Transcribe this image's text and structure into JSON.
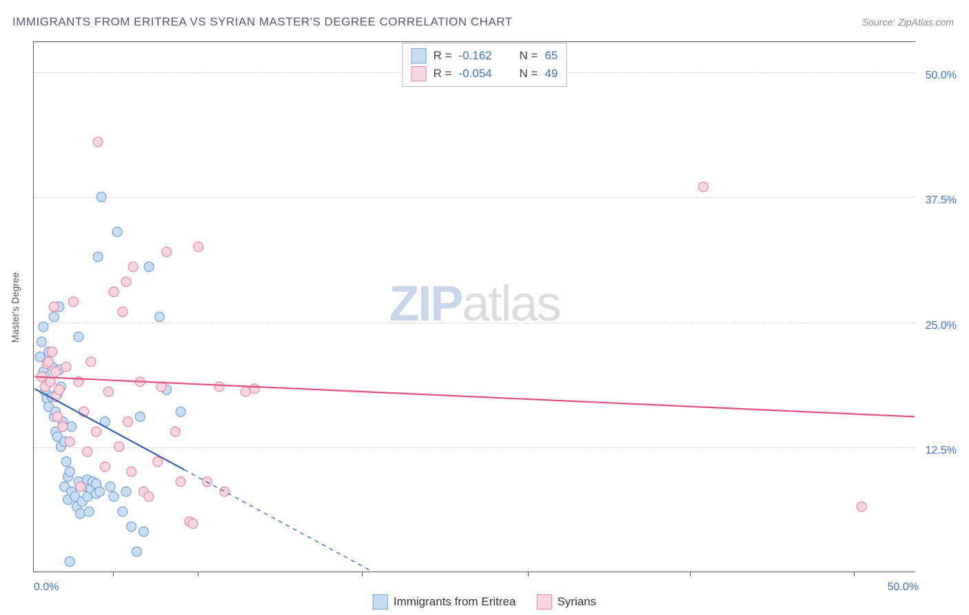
{
  "title": "IMMIGRANTS FROM ERITREA VS SYRIAN MASTER'S DEGREE CORRELATION CHART",
  "source_prefix": "Source: ",
  "source_name": "ZipAtlas.com",
  "watermark_zip": "ZIP",
  "watermark_atlas": "atlas",
  "ylabel": "Master's Degree",
  "chart": {
    "type": "scatter",
    "background_color": "#ffffff",
    "grid_color": "#d5d5d5",
    "axis_color": "#555555",
    "xlim": [
      0,
      50
    ],
    "ylim": [
      0,
      53
    ],
    "yticks": [
      12.5,
      25.0,
      37.5,
      50.0
    ],
    "ytick_labels": [
      "12.5%",
      "25.0%",
      "37.5%",
      "50.0%"
    ],
    "xticks_major": [
      0,
      50
    ],
    "xtick_labels": [
      "0.0%",
      "50.0%"
    ],
    "xticks_minor": [
      4.5,
      9.3,
      18.6,
      28.0,
      37.2,
      46.5
    ],
    "marker_radius": 7,
    "marker_stroke_width": 1.2,
    "trendline_width": 2.2,
    "series_a": {
      "label": "Immigrants from Eritrea",
      "fill": "#c9ddf4",
      "stroke": "#6fa0dc",
      "line_color": "#2e5fbf",
      "r": "-0.162",
      "n": "65",
      "trend": {
        "x1": 0,
        "y1": 18.3,
        "x2": 8.5,
        "y2": 10.2
      },
      "trend_ext": {
        "x1": 8.5,
        "y1": 10.2,
        "x2": 19.2,
        "y2": 0
      },
      "points": [
        [
          0.3,
          21.5
        ],
        [
          0.4,
          23.0
        ],
        [
          0.5,
          24.5
        ],
        [
          0.5,
          20.0
        ],
        [
          0.6,
          18.0
        ],
        [
          0.6,
          19.5
        ],
        [
          0.7,
          17.3
        ],
        [
          0.7,
          18.8
        ],
        [
          0.8,
          16.5
        ],
        [
          0.8,
          22.0
        ],
        [
          0.9,
          19.0
        ],
        [
          1.0,
          17.5
        ],
        [
          1.0,
          20.5
        ],
        [
          1.1,
          15.5
        ],
        [
          1.1,
          25.5
        ],
        [
          1.2,
          14.0
        ],
        [
          1.2,
          16.0
        ],
        [
          1.3,
          13.5
        ],
        [
          1.3,
          17.8
        ],
        [
          1.4,
          20.2
        ],
        [
          1.4,
          26.5
        ],
        [
          1.5,
          12.5
        ],
        [
          1.5,
          18.5
        ],
        [
          1.6,
          15.0
        ],
        [
          1.7,
          13.0
        ],
        [
          1.7,
          8.5
        ],
        [
          1.8,
          11.0
        ],
        [
          1.9,
          9.5
        ],
        [
          1.9,
          7.2
        ],
        [
          2.0,
          10.0
        ],
        [
          2.1,
          8.0
        ],
        [
          2.1,
          14.5
        ],
        [
          2.3,
          7.5
        ],
        [
          2.4,
          6.5
        ],
        [
          2.5,
          9.0
        ],
        [
          2.5,
          23.5
        ],
        [
          2.6,
          5.8
        ],
        [
          2.7,
          7.0
        ],
        [
          2.8,
          16.0
        ],
        [
          2.9,
          8.5
        ],
        [
          3.0,
          7.5
        ],
        [
          3.0,
          9.2
        ],
        [
          3.1,
          6.0
        ],
        [
          3.2,
          8.3
        ],
        [
          3.3,
          9.0
        ],
        [
          3.5,
          7.8
        ],
        [
          3.5,
          8.8
        ],
        [
          3.6,
          31.5
        ],
        [
          3.7,
          8.0
        ],
        [
          3.8,
          37.5
        ],
        [
          4.0,
          15.0
        ],
        [
          4.3,
          8.5
        ],
        [
          4.5,
          7.5
        ],
        [
          4.7,
          34.0
        ],
        [
          5.0,
          6.0
        ],
        [
          5.2,
          8.0
        ],
        [
          5.5,
          4.5
        ],
        [
          5.8,
          2.0
        ],
        [
          6.0,
          15.5
        ],
        [
          6.2,
          4.0
        ],
        [
          6.5,
          30.5
        ],
        [
          7.1,
          25.5
        ],
        [
          7.5,
          18.2
        ],
        [
          8.3,
          16.0
        ],
        [
          2.0,
          1.0
        ]
      ]
    },
    "series_b": {
      "label": "Syrians",
      "fill": "#f8d6de",
      "stroke": "#e687a0",
      "line_color": "#e14f7a",
      "r": "-0.054",
      "n": "49",
      "trend": {
        "x1": 0,
        "y1": 19.5,
        "x2": 50,
        "y2": 15.5
      },
      "points": [
        [
          0.4,
          19.5
        ],
        [
          0.6,
          18.5
        ],
        [
          0.7,
          20.8
        ],
        [
          0.8,
          21.0
        ],
        [
          0.9,
          19.0
        ],
        [
          1.0,
          22.0
        ],
        [
          1.1,
          26.5
        ],
        [
          1.2,
          17.5
        ],
        [
          1.2,
          20.0
        ],
        [
          1.3,
          15.5
        ],
        [
          1.4,
          18.2
        ],
        [
          1.6,
          14.5
        ],
        [
          1.8,
          20.5
        ],
        [
          2.0,
          13.0
        ],
        [
          2.2,
          27.0
        ],
        [
          2.5,
          19.0
        ],
        [
          2.6,
          8.5
        ],
        [
          2.8,
          16.0
        ],
        [
          3.0,
          12.0
        ],
        [
          3.2,
          21.0
        ],
        [
          3.5,
          14.0
        ],
        [
          3.6,
          43.0
        ],
        [
          4.0,
          10.5
        ],
        [
          4.2,
          18.0
        ],
        [
          4.5,
          28.0
        ],
        [
          4.8,
          12.5
        ],
        [
          5.0,
          26.0
        ],
        [
          5.3,
          15.0
        ],
        [
          5.5,
          10.0
        ],
        [
          5.6,
          30.5
        ],
        [
          6.0,
          19.0
        ],
        [
          6.2,
          8.0
        ],
        [
          6.5,
          7.5
        ],
        [
          7.0,
          11.0
        ],
        [
          7.2,
          18.5
        ],
        [
          7.5,
          32.0
        ],
        [
          8.0,
          14.0
        ],
        [
          8.3,
          9.0
        ],
        [
          8.8,
          5.0
        ],
        [
          9.0,
          4.8
        ],
        [
          9.3,
          32.5
        ],
        [
          9.8,
          9.0
        ],
        [
          10.5,
          18.5
        ],
        [
          10.8,
          8.0
        ],
        [
          12.0,
          18.0
        ],
        [
          12.5,
          18.3
        ],
        [
          38.0,
          38.5
        ],
        [
          47.0,
          6.5
        ],
        [
          5.2,
          29.0
        ]
      ]
    }
  },
  "legend_bottom": [
    {
      "label": "Immigrants from Eritrea",
      "fill": "#c9ddf4",
      "stroke": "#6fa0dc"
    },
    {
      "label": "Syrians",
      "fill": "#f8d6de",
      "stroke": "#e687a0"
    }
  ]
}
